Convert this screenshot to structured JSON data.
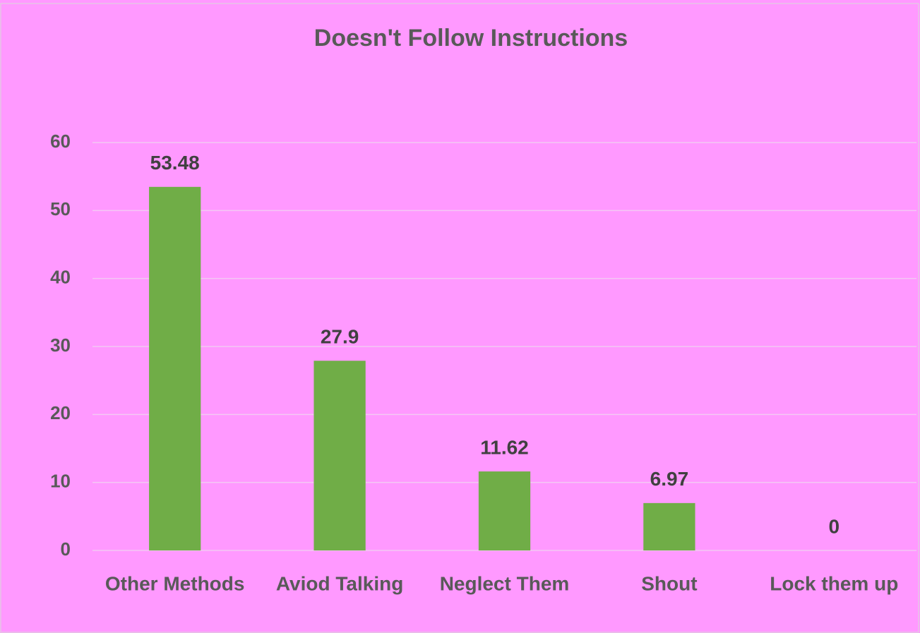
{
  "chart_data": {
    "type": "bar",
    "title": "Doesn't Follow Instructions",
    "categories": [
      "Other Methods",
      "Aviod Talking",
      "Neglect Them",
      "Shout",
      "Lock them up"
    ],
    "values": [
      53.48,
      27.9,
      11.62,
      6.97,
      0
    ],
    "color": "#70ad47",
    "ylim": [
      0,
      60
    ],
    "yticks": [
      0,
      10,
      20,
      30,
      40,
      50,
      60
    ],
    "grid": true
  }
}
